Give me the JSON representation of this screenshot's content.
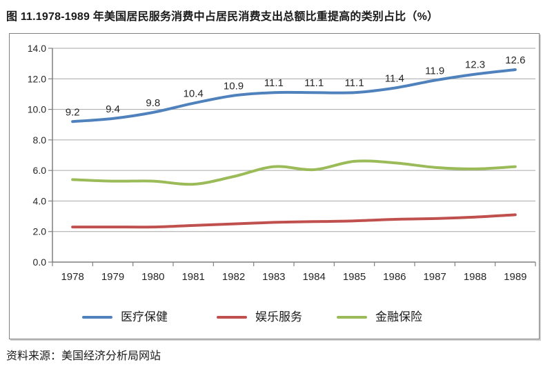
{
  "title": "图 11.1978-1989 年美国居民服务消费中占居民消费支出总额比重提高的类别占比（%）",
  "source": "资料来源：美国经济分析局网站",
  "colors": {
    "series_blue": "#4F81BD",
    "series_red": "#C0504D",
    "series_green": "#9BBB59",
    "gridline": "#A6A6A6",
    "axis": "#7F7F7F",
    "text": "#262626"
  },
  "chart_data": {
    "type": "line",
    "title": "图 11.1978-1989 年美国居民服务消费中占居民消费支出总额比重提高的类别占比（%）",
    "categories": [
      "1978",
      "1979",
      "1980",
      "1981",
      "1982",
      "1983",
      "1984",
      "1985",
      "1986",
      "1987",
      "1988",
      "1989"
    ],
    "series": [
      {
        "id": "medical-care",
        "name": "医疗保健",
        "color": "#4F81BD",
        "values": [
          9.2,
          9.4,
          9.8,
          10.4,
          10.9,
          11.1,
          11.1,
          11.1,
          11.4,
          11.9,
          12.3,
          12.6
        ],
        "point_labels": [
          "9.2",
          "9.4",
          "9.8",
          "10.4",
          "10.9",
          "11.1",
          "11.1",
          "11.1",
          "11.4",
          "11.9",
          "12.3",
          "12.6"
        ]
      },
      {
        "id": "entertainment-services",
        "name": "娱乐服务",
        "color": "#C0504D",
        "values": [
          2.3,
          2.3,
          2.3,
          2.4,
          2.5,
          2.6,
          2.65,
          2.7,
          2.8,
          2.85,
          2.95,
          3.1
        ],
        "point_labels": []
      },
      {
        "id": "finance-insurance",
        "name": "金融保险",
        "color": "#9BBB59",
        "values": [
          5.4,
          5.3,
          5.3,
          5.1,
          5.6,
          6.25,
          6.05,
          6.6,
          6.5,
          6.2,
          6.1,
          6.25
        ],
        "point_labels": []
      }
    ],
    "xlabel": "",
    "ylabel": "",
    "ylim": [
      0,
      14
    ],
    "ytick_step": 2,
    "ytick_labels": [
      "0.0",
      "2.0",
      "4.0",
      "6.0",
      "8.0",
      "10.0",
      "12.0",
      "14.0"
    ],
    "grid": true,
    "legend_position": "bottom",
    "smoothed_lines": true
  }
}
